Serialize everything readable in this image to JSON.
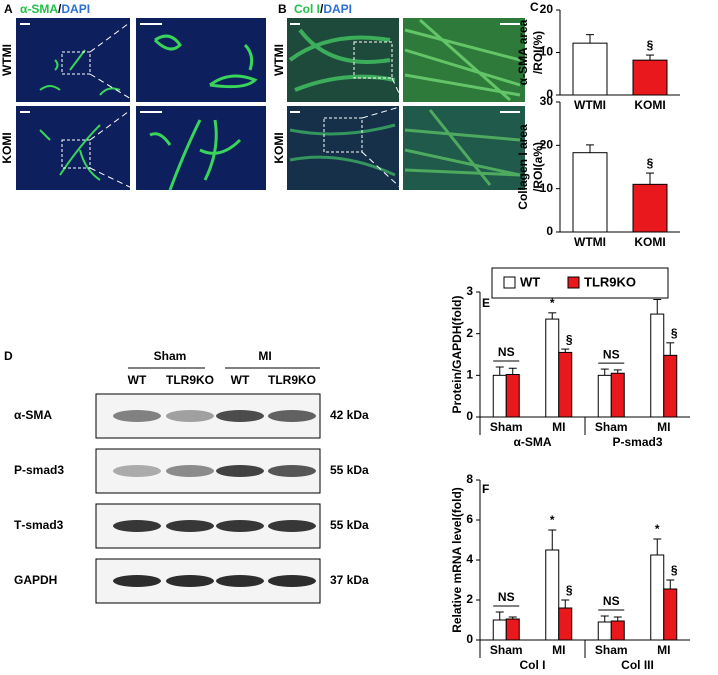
{
  "panels": {
    "A": {
      "label": "A",
      "title": [
        "α-SMA",
        "/",
        "DAPI"
      ],
      "rows": [
        "WTMI",
        "KOMI"
      ]
    },
    "B": {
      "label": "B",
      "title": [
        "Col I",
        "/",
        "DAPI"
      ],
      "rows": [
        "WTMI",
        "KOMI"
      ]
    },
    "C": {
      "label": "C"
    },
    "D": {
      "label": "D",
      "groups": [
        "Sham",
        "MI"
      ],
      "lanes": [
        "WT",
        "TLR9KO",
        "WT",
        "TLR9KO"
      ],
      "blots": [
        {
          "name": "α-SMA",
          "size": "42 kDa"
        },
        {
          "name": "P-smad3",
          "size": "55 kDa"
        },
        {
          "name": "Т-smad3",
          "size": "55 kDa"
        },
        {
          "name": "GAPDH",
          "size": "37 kDa"
        }
      ]
    },
    "E": {
      "label": "E"
    },
    "F": {
      "label": "F"
    }
  },
  "chart_data": [
    {
      "type": "bar",
      "y_label": [
        "α-SMA area",
        "/ROI(%)"
      ],
      "categories": [
        "WTMI",
        "KOMI"
      ],
      "values": [
        12.2,
        8.2
      ],
      "errors": [
        2.0,
        1.2
      ],
      "colors": [
        "#ffffff",
        "#e8181c"
      ],
      "ylim": [
        0,
        20
      ],
      "yticks": [
        0,
        10,
        20
      ],
      "annotations": [
        {
          "text": "§",
          "category": 1
        }
      ]
    },
    {
      "type": "bar",
      "y_label": [
        "Collagen I area",
        "/ROI(a%)"
      ],
      "categories": [
        "WTMI",
        "KOMI"
      ],
      "values": [
        18.3,
        11.0
      ],
      "errors": [
        1.8,
        2.6
      ],
      "colors": [
        "#ffffff",
        "#e8181c"
      ],
      "ylim": [
        0,
        30
      ],
      "yticks": [
        0,
        10,
        20,
        30
      ],
      "annotations": [
        {
          "text": "§",
          "category": 1
        }
      ]
    },
    {
      "type": "grouped-bar",
      "y_label": "Protein/GAPDH(fold)",
      "legend": "top",
      "categories": [
        "Sham",
        "MI",
        "Sham",
        "MI"
      ],
      "groups": [
        "α-SMA",
        "P-smad3"
      ],
      "series": [
        {
          "name": "WT",
          "color": "#ffffff",
          "values": [
            1.0,
            2.35,
            1.0,
            2.47
          ],
          "errors": [
            0.2,
            0.15,
            0.15,
            0.35
          ]
        },
        {
          "name": "TLR9KO",
          "color": "#e8181c",
          "values": [
            1.02,
            1.55,
            1.05,
            1.48
          ],
          "errors": [
            0.15,
            0.08,
            0.08,
            0.3
          ]
        }
      ],
      "ylim": [
        0,
        3
      ],
      "yticks": [
        0,
        1,
        2,
        3
      ],
      "annotations": [
        {
          "text": "NS",
          "category": 0
        },
        {
          "text": "*",
          "category": 1,
          "series": 0
        },
        {
          "text": "§",
          "category": 1,
          "series": 1
        },
        {
          "text": "NS",
          "category": 2
        },
        {
          "text": "*",
          "category": 3,
          "series": 0
        },
        {
          "text": "§",
          "category": 3,
          "series": 1
        }
      ]
    },
    {
      "type": "grouped-bar",
      "y_label": "Relative mRNA level(fold)",
      "categories": [
        "Sham",
        "MI",
        "Sham",
        "MI"
      ],
      "groups": [
        "Col I",
        "Col III"
      ],
      "series": [
        {
          "color": "#ffffff",
          "values": [
            1.0,
            4.5,
            0.9,
            4.25
          ],
          "errors": [
            0.4,
            1.0,
            0.3,
            0.8
          ]
        },
        {
          "color": "#e8181c",
          "values": [
            1.05,
            1.6,
            0.95,
            2.55
          ],
          "errors": [
            0.1,
            0.4,
            0.2,
            0.45
          ]
        }
      ],
      "ylim": [
        0,
        8
      ],
      "yticks": [
        0,
        2,
        4,
        6,
        8
      ],
      "annotations": [
        {
          "text": "NS",
          "category": 0
        },
        {
          "text": "*",
          "category": 1,
          "series": 0
        },
        {
          "text": "§",
          "category": 1,
          "series": 1
        },
        {
          "text": "NS",
          "category": 2
        },
        {
          "text": "*",
          "category": 3,
          "series": 0
        },
        {
          "text": "§",
          "category": 3,
          "series": 1
        }
      ]
    }
  ]
}
